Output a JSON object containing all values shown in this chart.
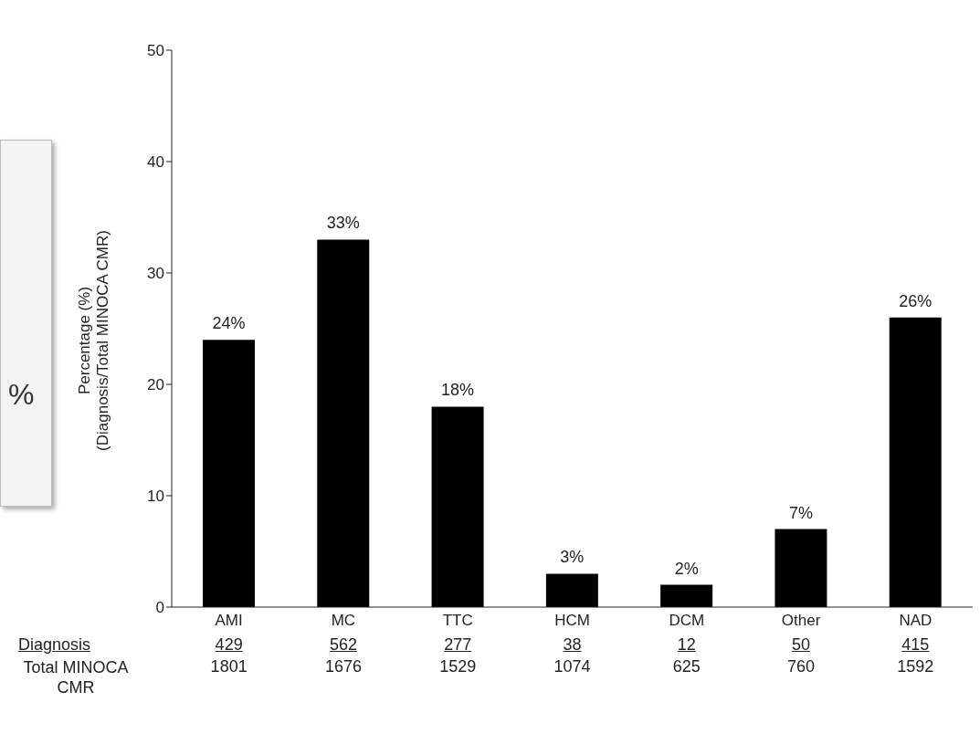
{
  "chart_data": {
    "type": "bar",
    "ylabel": "Percentage (%)\n(Diagnosis/Total MINOCA CMR)",
    "categories": [
      "AMI",
      "MC",
      "TTC",
      "HCM",
      "DCM",
      "Other",
      "NAD"
    ],
    "values": [
      24,
      33,
      18,
      3,
      2,
      7,
      26
    ],
    "value_labels": [
      "24%",
      "33%",
      "18%",
      "3%",
      "2%",
      "7%",
      "26%"
    ],
    "color": "#000000",
    "ylim": [
      0,
      50
    ],
    "yticks": [
      0,
      10,
      20,
      30,
      40,
      50
    ],
    "grid": false,
    "legend": false,
    "annotations": [
      "%",
      "Diagnosis",
      "Total MINOCA CMR",
      "429",
      "562",
      "277",
      "38",
      "12",
      "50",
      "415",
      "1801",
      "1676",
      "1529",
      "1074",
      "625",
      "760",
      "1592"
    ]
  }
}
